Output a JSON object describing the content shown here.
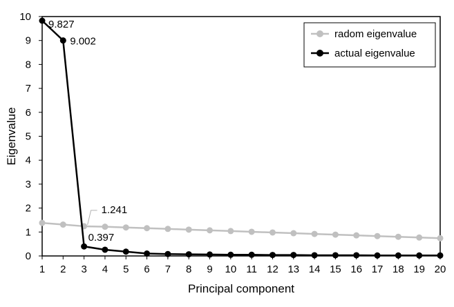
{
  "chart_data": {
    "type": "line",
    "title": "",
    "xlabel": "Principal component",
    "ylabel": "Eigenvalue",
    "x": [
      1,
      2,
      3,
      4,
      5,
      6,
      7,
      8,
      9,
      10,
      11,
      12,
      13,
      14,
      15,
      16,
      17,
      18,
      19,
      20
    ],
    "xlim": [
      1,
      20
    ],
    "ylim": [
      0,
      10
    ],
    "yticks": [
      0,
      1,
      2,
      3,
      4,
      5,
      6,
      7,
      8,
      9,
      10
    ],
    "grid": false,
    "legend_position": "top-right",
    "series": [
      {
        "name": "radom eigenvalue",
        "color": "#c0c0c0",
        "values": [
          1.38,
          1.31,
          1.241,
          1.22,
          1.19,
          1.16,
          1.13,
          1.1,
          1.07,
          1.04,
          1.01,
          0.98,
          0.95,
          0.92,
          0.89,
          0.86,
          0.83,
          0.8,
          0.77,
          0.74
        ]
      },
      {
        "name": "actual eigenvalue",
        "color": "#000000",
        "values": [
          9.827,
          9.002,
          0.397,
          0.26,
          0.18,
          0.1,
          0.08,
          0.07,
          0.06,
          0.05,
          0.05,
          0.04,
          0.04,
          0.03,
          0.03,
          0.03,
          0.02,
          0.02,
          0.02,
          0.02
        ]
      }
    ],
    "annotations": [
      {
        "series": 1,
        "index": 0,
        "text": "9.827"
      },
      {
        "series": 1,
        "index": 1,
        "text": "9.002"
      },
      {
        "series": 0,
        "index": 2,
        "text": "1.241"
      },
      {
        "series": 1,
        "index": 2,
        "text": "0.397"
      }
    ]
  }
}
